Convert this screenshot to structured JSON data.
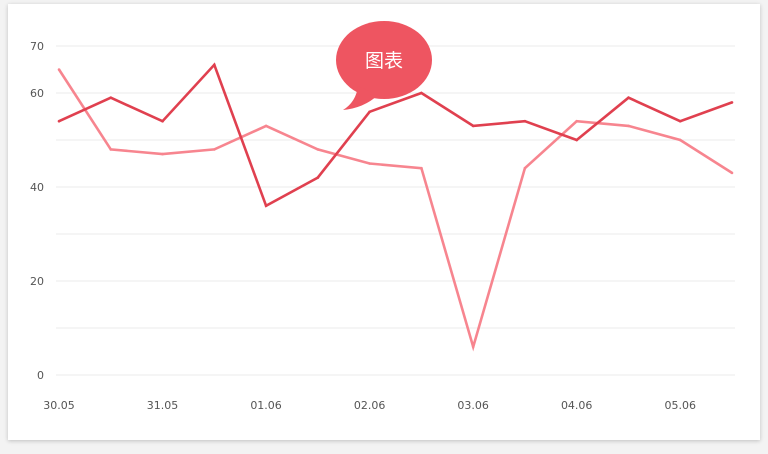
{
  "colors": {
    "series_primary": "#e0404f",
    "series_secondary": "#f7858f",
    "bubble": "#ee5561",
    "grid": "#ebebeb",
    "tick_text": "#555555"
  },
  "badge": {
    "label": "图表",
    "icon": "speech-bubble-icon"
  },
  "chart_data": {
    "type": "line",
    "title": "",
    "xlabel": "",
    "ylabel": "",
    "ylim": [
      0,
      70
    ],
    "yticks": [
      0,
      10,
      20,
      30,
      40,
      50,
      60,
      70
    ],
    "ytick_labels": [
      "0",
      "",
      "20",
      "",
      "40",
      "",
      "60",
      "70"
    ],
    "grid": true,
    "legend": "none",
    "x": [
      "30.05",
      "",
      "31.05",
      "",
      "01.06",
      "",
      "02.06",
      "",
      "03.06",
      "",
      "04.06",
      "",
      "05.06",
      ""
    ],
    "xtick_labels": [
      "30.05",
      "31.05",
      "01.06",
      "02.06",
      "03.06",
      "04.06",
      "05.06"
    ],
    "series": [
      {
        "values": [
          65,
          48,
          47,
          48,
          53,
          48,
          45,
          44,
          6,
          44,
          54,
          53,
          50,
          43
        ]
      },
      {
        "values": [
          54,
          59,
          54,
          66,
          36,
          42,
          56,
          60,
          53,
          54,
          50,
          59,
          54,
          58
        ]
      }
    ]
  }
}
